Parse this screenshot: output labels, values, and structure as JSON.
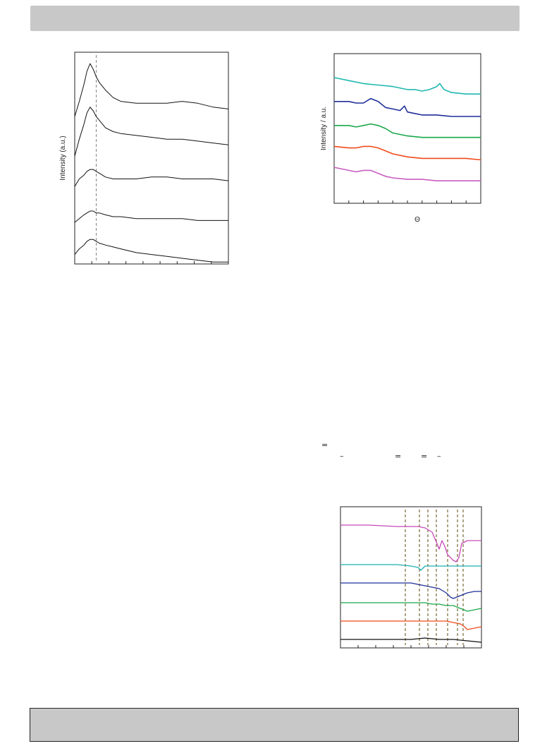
{
  "chart_data": [
    {
      "type": "line",
      "ylabel": "Intensity (a.u.)",
      "xlabel": "",
      "title": "",
      "grid": false,
      "series": [
        {
          "color": "#111111",
          "x": [
            0,
            3,
            6,
            8,
            10,
            12,
            14,
            16,
            20,
            25,
            30,
            40,
            50,
            60,
            70,
            80,
            90,
            100
          ],
          "y": [
            0.78,
            0.86,
            0.95,
            1.02,
            1.06,
            1.03,
            0.99,
            0.96,
            0.92,
            0.88,
            0.86,
            0.85,
            0.85,
            0.85,
            0.86,
            0.85,
            0.83,
            0.82
          ]
        },
        {
          "color": "#111111",
          "x": [
            0,
            3,
            6,
            8,
            10,
            12,
            14,
            16,
            20,
            25,
            30,
            40,
            50,
            60,
            70,
            80,
            90,
            100
          ],
          "y": [
            0.57,
            0.66,
            0.74,
            0.8,
            0.83,
            0.81,
            0.78,
            0.76,
            0.72,
            0.7,
            0.69,
            0.68,
            0.67,
            0.66,
            0.66,
            0.65,
            0.64,
            0.63
          ]
        },
        {
          "color": "#111111",
          "x": [
            0,
            3,
            6,
            8,
            10,
            12,
            14,
            16,
            20,
            25,
            30,
            40,
            50,
            60,
            70,
            80,
            90,
            100
          ],
          "y": [
            0.41,
            0.45,
            0.47,
            0.49,
            0.5,
            0.5,
            0.49,
            0.48,
            0.46,
            0.45,
            0.45,
            0.45,
            0.46,
            0.46,
            0.45,
            0.45,
            0.45,
            0.44
          ]
        },
        {
          "color": "#111111",
          "x": [
            0,
            3,
            6,
            8,
            10,
            12,
            14,
            16,
            20,
            25,
            30,
            40,
            50,
            60,
            70,
            80,
            90,
            100
          ],
          "y": [
            0.22,
            0.24,
            0.26,
            0.27,
            0.28,
            0.28,
            0.27,
            0.27,
            0.26,
            0.25,
            0.25,
            0.24,
            0.24,
            0.24,
            0.24,
            0.23,
            0.23,
            0.23
          ]
        },
        {
          "color": "#111111",
          "x": [
            0,
            3,
            6,
            8,
            10,
            12,
            14,
            16,
            20,
            25,
            30,
            40,
            50,
            60,
            70,
            80,
            90,
            100
          ],
          "y": [
            0.05,
            0.08,
            0.1,
            0.12,
            0.13,
            0.13,
            0.12,
            0.11,
            0.1,
            0.09,
            0.08,
            0.06,
            0.05,
            0.04,
            0.03,
            0.02,
            0.01,
            0.01
          ]
        }
      ],
      "reference_line_x": 14,
      "xlim": [
        0,
        100
      ],
      "ylim": [
        0,
        1.12
      ]
    },
    {
      "type": "line",
      "ylabel": "Intensity / a.u.",
      "xlabel": "Θ",
      "title": "",
      "grid": false,
      "series": [
        {
          "color": "#1fb8b0",
          "x": [
            0,
            10,
            20,
            30,
            40,
            50,
            55,
            60,
            65,
            70,
            72,
            75,
            80,
            90,
            100
          ],
          "y": [
            0.84,
            0.82,
            0.8,
            0.79,
            0.78,
            0.76,
            0.76,
            0.75,
            0.76,
            0.78,
            0.8,
            0.76,
            0.74,
            0.73,
            0.73
          ]
        },
        {
          "color": "#1f2f9a",
          "x": [
            0,
            10,
            15,
            20,
            25,
            30,
            35,
            40,
            45,
            48,
            50,
            55,
            60,
            70,
            80,
            90,
            100
          ],
          "y": [
            0.68,
            0.68,
            0.67,
            0.67,
            0.7,
            0.68,
            0.64,
            0.63,
            0.62,
            0.65,
            0.61,
            0.6,
            0.59,
            0.59,
            0.58,
            0.58,
            0.58
          ]
        },
        {
          "color": "#1aa84a",
          "x": [
            0,
            10,
            15,
            20,
            25,
            30,
            35,
            40,
            50,
            60,
            70,
            80,
            90,
            100
          ],
          "y": [
            0.52,
            0.52,
            0.51,
            0.52,
            0.53,
            0.52,
            0.5,
            0.47,
            0.45,
            0.44,
            0.44,
            0.44,
            0.44,
            0.44
          ]
        },
        {
          "color": "#f04a1a",
          "x": [
            0,
            10,
            15,
            20,
            25,
            30,
            35,
            40,
            50,
            60,
            70,
            80,
            90,
            100
          ],
          "y": [
            0.38,
            0.37,
            0.37,
            0.38,
            0.38,
            0.37,
            0.35,
            0.33,
            0.31,
            0.3,
            0.3,
            0.3,
            0.3,
            0.29
          ]
        },
        {
          "color": "#c85cc0",
          "x": [
            0,
            10,
            15,
            20,
            25,
            30,
            35,
            40,
            50,
            60,
            70,
            80,
            90,
            100
          ],
          "y": [
            0.24,
            0.22,
            0.21,
            0.22,
            0.22,
            0.2,
            0.18,
            0.17,
            0.16,
            0.16,
            0.15,
            0.15,
            0.15,
            0.15
          ]
        }
      ],
      "xlim": [
        0,
        100
      ],
      "ylim": [
        0,
        1.0
      ]
    },
    {
      "type": "line",
      "ylabel": "",
      "xlabel": "",
      "title": "",
      "grid": false,
      "series": [
        {
          "color": "#c84ab8",
          "x": [
            0,
            20,
            40,
            55,
            60,
            65,
            68,
            70,
            72,
            74,
            76,
            78,
            80,
            82,
            84,
            86,
            90,
            95,
            100
          ],
          "y": [
            0.87,
            0.87,
            0.86,
            0.86,
            0.85,
            0.82,
            0.75,
            0.7,
            0.76,
            0.72,
            0.66,
            0.64,
            0.62,
            0.61,
            0.64,
            0.74,
            0.76,
            0.76,
            0.76
          ]
        },
        {
          "color": "#1fb0b0",
          "x": [
            0,
            20,
            40,
            50,
            55,
            57,
            60,
            65,
            70,
            80,
            90,
            100
          ],
          "y": [
            0.59,
            0.59,
            0.59,
            0.58,
            0.57,
            0.55,
            0.58,
            0.58,
            0.58,
            0.58,
            0.58,
            0.58
          ]
        },
        {
          "color": "#1f2f9a",
          "x": [
            0,
            20,
            40,
            50,
            55,
            60,
            65,
            70,
            75,
            78,
            80,
            85,
            90,
            95,
            100
          ],
          "y": [
            0.46,
            0.46,
            0.46,
            0.46,
            0.45,
            0.44,
            0.43,
            0.42,
            0.39,
            0.36,
            0.35,
            0.37,
            0.39,
            0.4,
            0.4
          ]
        },
        {
          "color": "#1aa84a",
          "x": [
            0,
            20,
            40,
            50,
            60,
            65,
            70,
            75,
            80,
            85,
            90,
            100
          ],
          "y": [
            0.32,
            0.32,
            0.32,
            0.32,
            0.32,
            0.31,
            0.31,
            0.3,
            0.3,
            0.28,
            0.26,
            0.28
          ]
        },
        {
          "color": "#f04a1a",
          "x": [
            0,
            20,
            40,
            50,
            60,
            70,
            75,
            80,
            85,
            88,
            90,
            95,
            100
          ],
          "y": [
            0.19,
            0.19,
            0.19,
            0.19,
            0.19,
            0.19,
            0.19,
            0.18,
            0.17,
            0.15,
            0.13,
            0.14,
            0.15
          ]
        },
        {
          "color": "#111111",
          "x": [
            0,
            20,
            40,
            50,
            60,
            70,
            80,
            90,
            100
          ],
          "y": [
            0.06,
            0.06,
            0.06,
            0.06,
            0.07,
            0.06,
            0.06,
            0.05,
            0.04
          ]
        }
      ],
      "reference_lines_x": [
        46,
        56,
        62,
        68,
        76,
        83,
        87
      ],
      "xlim": [
        0,
        100
      ],
      "ylim": [
        0,
        1.0
      ]
    }
  ],
  "equation_symbols": [
    "=",
    "=",
    "=",
    "–",
    "–"
  ]
}
